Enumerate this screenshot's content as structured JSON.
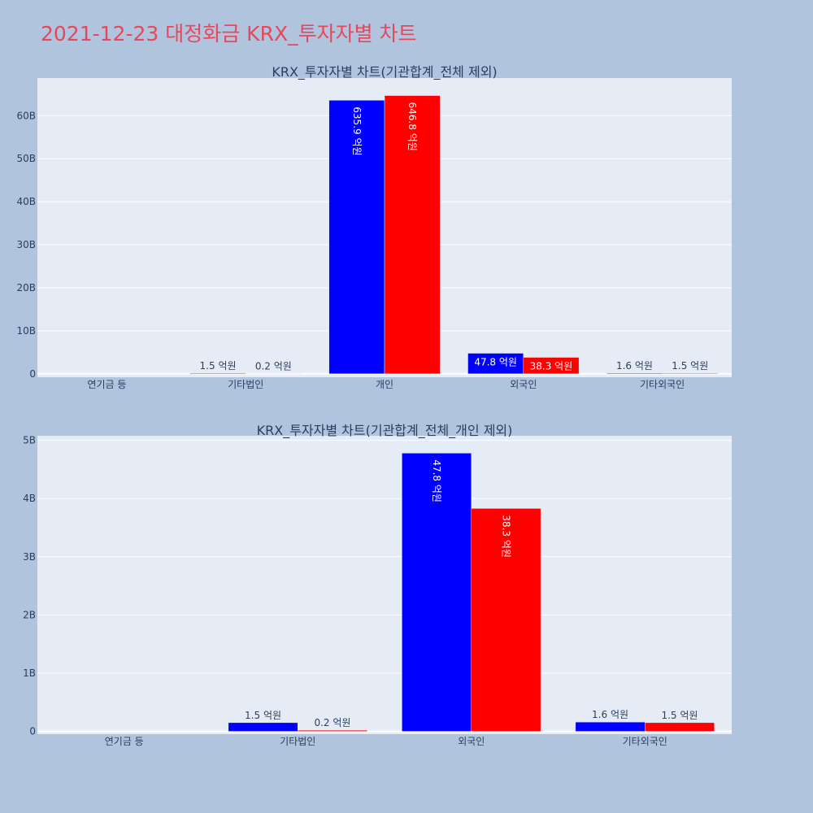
{
  "page": {
    "title": "2021-12-23 대정화금 KRX_투자자별 차트",
    "title_color": "#e8475b",
    "background": "#b0c4de",
    "plot_background": "#e5ecf6"
  },
  "chart_data": [
    {
      "type": "bar",
      "title": "KRX_투자자별 차트(기관합계_전체 제외)",
      "categories": [
        "연기금 등",
        "기타법인",
        "개인",
        "외국인",
        "기타외국인"
      ],
      "series": [
        {
          "color": "#0000ff",
          "values": [
            0,
            0.15,
            63.59,
            4.78,
            0.16
          ],
          "labels": [
            "",
            "1.5 억원",
            "635.9 억원",
            "47.8 억원",
            "1.6 억원"
          ]
        },
        {
          "color": "#ff0000",
          "values": [
            0,
            0.02,
            64.68,
            3.83,
            0.15
          ],
          "labels": [
            "",
            "0.2 억원",
            "646.8 억원",
            "38.3 억원",
            "1.5 억원"
          ]
        }
      ],
      "yticks": [
        0,
        10,
        20,
        30,
        40,
        50,
        60
      ],
      "ytick_labels": [
        "0",
        "10B",
        "20B",
        "30B",
        "40B",
        "50B",
        "60B"
      ],
      "ylim": [
        -0.5,
        68.6
      ],
      "grid": true
    },
    {
      "type": "bar",
      "title": "KRX_투자자별 차트(기관합계_전체_개인 제외)",
      "categories": [
        "연기금 등",
        "기타법인",
        "외국인",
        "기타외국인"
      ],
      "series": [
        {
          "color": "#0000ff",
          "values": [
            0,
            0.15,
            4.78,
            0.16
          ],
          "labels": [
            "",
            "1.5 억원",
            "47.8 억원",
            "1.6 억원"
          ]
        },
        {
          "color": "#ff0000",
          "values": [
            0,
            0.02,
            3.83,
            0.15
          ],
          "labels": [
            "",
            "0.2 억원",
            "38.3 억원",
            "1.5 억원"
          ]
        }
      ],
      "yticks": [
        0,
        1,
        2,
        3,
        4,
        5
      ],
      "ytick_labels": [
        "0",
        "1B",
        "2B",
        "3B",
        "4B",
        "5B"
      ],
      "ylim": [
        -0.04,
        5.05
      ],
      "grid": true
    }
  ]
}
